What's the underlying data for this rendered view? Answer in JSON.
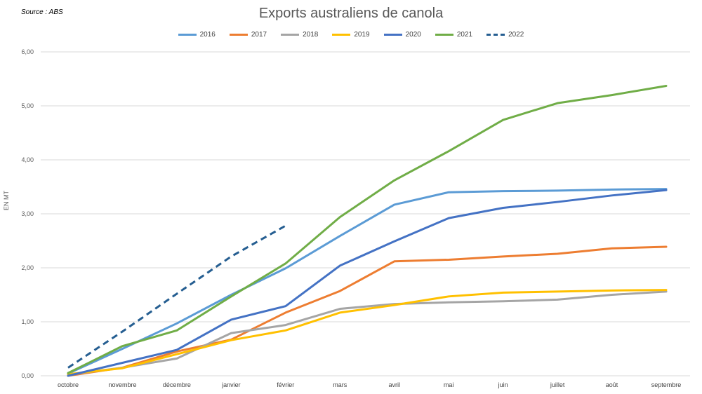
{
  "source_note": "Source : ABS",
  "chart_data": {
    "type": "line",
    "title": "Exports australiens de canola",
    "xlabel": "",
    "ylabel": "EN MT",
    "categories": [
      "octobre",
      "novembre",
      "décembre",
      "janvier",
      "février",
      "mars",
      "avril",
      "mai",
      "juin",
      "juillet",
      "août",
      "septembre"
    ],
    "ylim": [
      0,
      6
    ],
    "yticks": [
      0,
      1,
      2,
      3,
      4,
      5,
      6
    ],
    "ytick_labels": [
      "0,00",
      "1,00",
      "2,00",
      "3,00",
      "4,00",
      "5,00",
      "6,00"
    ],
    "grid": "horizontal",
    "legend_position": "top-center",
    "series": [
      {
        "name": "2016",
        "color": "#5B9BD5",
        "dash": false,
        "values": [
          0.04,
          0.5,
          0.97,
          1.5,
          1.99,
          2.59,
          3.17,
          3.4,
          3.42,
          3.43,
          3.45,
          3.46
        ]
      },
      {
        "name": "2017",
        "color": "#ED7D31",
        "dash": false,
        "values": [
          0.0,
          0.15,
          0.45,
          0.67,
          1.17,
          1.57,
          2.12,
          2.15,
          2.21,
          2.26,
          2.36,
          2.39
        ]
      },
      {
        "name": "2018",
        "color": "#A5A5A5",
        "dash": false,
        "values": [
          0.02,
          0.15,
          0.32,
          0.79,
          0.94,
          1.24,
          1.33,
          1.36,
          1.38,
          1.41,
          1.5,
          1.56
        ]
      },
      {
        "name": "2019",
        "color": "#FFC000",
        "dash": false,
        "values": [
          0.03,
          0.14,
          0.4,
          0.66,
          0.84,
          1.17,
          1.31,
          1.47,
          1.54,
          1.56,
          1.58,
          1.59
        ]
      },
      {
        "name": "2020",
        "color": "#4472C4",
        "dash": false,
        "values": [
          0.0,
          0.24,
          0.48,
          1.04,
          1.29,
          2.04,
          2.49,
          2.92,
          3.11,
          3.22,
          3.34,
          3.44
        ]
      },
      {
        "name": "2021",
        "color": "#70AD47",
        "dash": false,
        "values": [
          0.05,
          0.55,
          0.84,
          1.47,
          2.08,
          2.94,
          3.62,
          4.16,
          4.74,
          5.05,
          5.2,
          5.37
        ]
      },
      {
        "name": "2022",
        "color": "#255E91",
        "dash": true,
        "values": [
          0.15,
          0.82,
          1.52,
          2.21,
          2.78,
          null,
          null,
          null,
          null,
          null,
          null,
          null
        ]
      }
    ]
  }
}
